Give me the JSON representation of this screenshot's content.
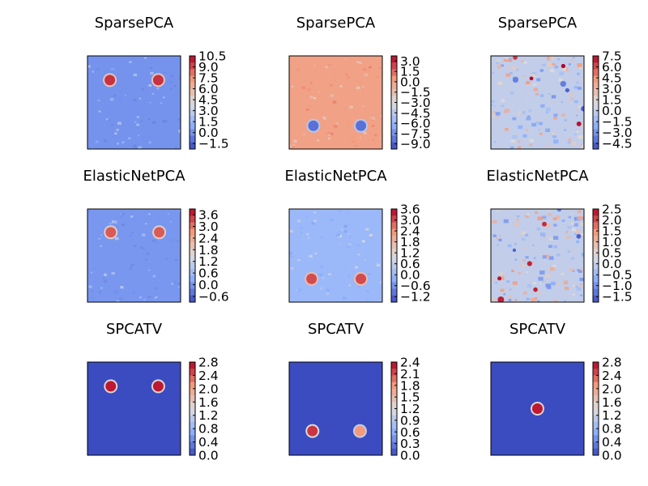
{
  "chart_data": [
    {
      "type": "heatmap",
      "title": "SparsePCA",
      "colorbar_ticks": [
        "10.5",
        "9.0",
        "7.5",
        "6.0",
        "4.5",
        "3.0",
        "1.5",
        "0.0",
        "−1.5"
      ],
      "cbar_range": [
        -2.25,
        10.5
      ],
      "blobs": [
        {
          "x": 0.24,
          "y": 0.26,
          "value": 9.5
        },
        {
          "x": 0.76,
          "y": 0.26,
          "value": 9.5
        }
      ],
      "noise": "light"
    },
    {
      "type": "heatmap",
      "title": "SparsePCA",
      "colorbar_ticks": [
        "3.0",
        "1.5",
        "0.0",
        "−1.5",
        "−3.0",
        "−4.5",
        "−6.0",
        "−7.5",
        "−9.0"
      ],
      "cbar_range": [
        -9.75,
        3.75
      ],
      "blobs": [
        {
          "x": 0.26,
          "y": 0.75,
          "value": -8.5
        },
        {
          "x": 0.77,
          "y": 0.75,
          "value": -8.5
        }
      ],
      "noise": "light"
    },
    {
      "type": "heatmap",
      "title": "SparsePCA",
      "colorbar_ticks": [
        "7.5",
        "6.0",
        "4.5",
        "3.0",
        "1.5",
        "0.0",
        "−1.5",
        "−3.0",
        "−4.5"
      ],
      "cbar_range": [
        -5.25,
        7.5
      ],
      "blobs": [],
      "noise": "heavy"
    },
    {
      "type": "heatmap",
      "title": "ElasticNetPCA",
      "colorbar_ticks": [
        "3.6",
        "3.0",
        "2.4",
        "1.8",
        "1.2",
        "0.6",
        "0.0",
        "−0.6"
      ],
      "cbar_range": [
        -0.9,
        3.9
      ],
      "blobs": [
        {
          "x": 0.25,
          "y": 0.25,
          "value": 3.2
        },
        {
          "x": 0.77,
          "y": 0.25,
          "value": 3.2
        }
      ],
      "noise": "light"
    },
    {
      "type": "heatmap",
      "title": "ElasticNetPCA",
      "colorbar_ticks": [
        "3.6",
        "3.0",
        "2.4",
        "1.8",
        "1.2",
        "0.6",
        "0.0",
        "−0.6",
        "−1.2"
      ],
      "cbar_range": [
        -1.5,
        3.6
      ],
      "blobs": [
        {
          "x": 0.24,
          "y": 0.75,
          "value": 3.0
        },
        {
          "x": 0.77,
          "y": 0.75,
          "value": 3.0
        }
      ],
      "noise": "light"
    },
    {
      "type": "heatmap",
      "title": "ElasticNetPCA",
      "colorbar_ticks": [
        "2.5",
        "2.0",
        "1.5",
        "1.0",
        "0.5",
        "0.0",
        "−0.5",
        "−1.0",
        "−1.5"
      ],
      "cbar_range": [
        -1.75,
        2.5
      ],
      "blobs": [],
      "noise": "heavy"
    },
    {
      "type": "heatmap",
      "title": "SPCATV",
      "colorbar_ticks": [
        "2.8",
        "2.4",
        "2.0",
        "1.6",
        "1.2",
        "0.8",
        "0.4",
        "0.0"
      ],
      "cbar_range": [
        0,
        2.8
      ],
      "blobs": [
        {
          "x": 0.25,
          "y": 0.26,
          "value": 2.7
        },
        {
          "x": 0.76,
          "y": 0.26,
          "value": 2.7
        }
      ],
      "noise": "none"
    },
    {
      "type": "heatmap",
      "title": "SPCATV",
      "colorbar_ticks": [
        "2.4",
        "2.1",
        "1.8",
        "1.5",
        "1.2",
        "0.9",
        "0.6",
        "0.3",
        "0.0"
      ],
      "cbar_range": [
        0,
        2.4
      ],
      "blobs": [
        {
          "x": 0.25,
          "y": 0.74,
          "value": 2.2
        },
        {
          "x": 0.76,
          "y": 0.74,
          "value": 1.8
        }
      ],
      "noise": "none"
    },
    {
      "type": "heatmap",
      "title": "SPCATV",
      "colorbar_ticks": [
        "2.8",
        "2.4",
        "2.0",
        "1.6",
        "1.2",
        "0.8",
        "0.4",
        "0.0"
      ],
      "cbar_range": [
        0,
        2.8
      ],
      "blobs": [
        {
          "x": 0.5,
          "y": 0.5,
          "value": 2.7
        }
      ],
      "noise": "none"
    }
  ]
}
